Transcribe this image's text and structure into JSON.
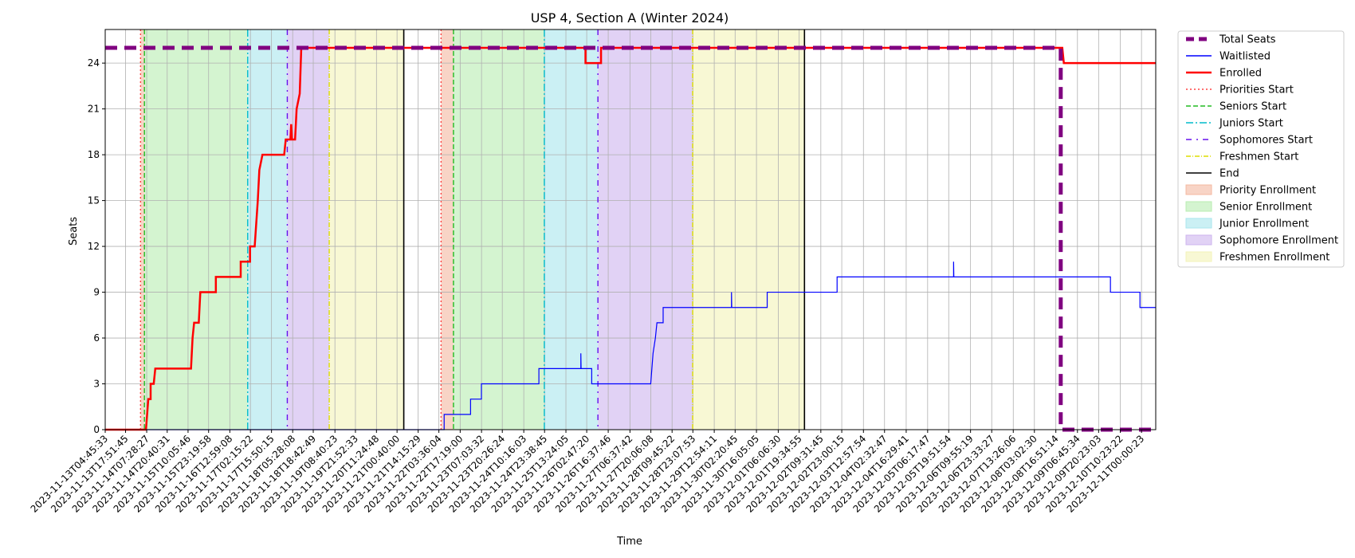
{
  "chart_data": {
    "type": "line",
    "title": "USP 4, Section A (Winter 2024)",
    "xlabel": "Time",
    "ylabel": "Seats",
    "xlim": [
      "2023-11-13T04:45:33",
      "2023-12-11T09:10:00"
    ],
    "ylim": [
      0,
      26.2
    ],
    "yticks": [
      0,
      3,
      6,
      9,
      12,
      15,
      18,
      21,
      24
    ],
    "xticks": [
      "2023-11-13T04:45:33",
      "2023-11-13T17:51:45",
      "2023-11-14T07:28:27",
      "2023-11-14T20:40:31",
      "2023-11-15T10:05:46",
      "2023-11-15T23:19:58",
      "2023-11-16T12:59:08",
      "2023-11-17T02:15:22",
      "2023-11-17T15:50:15",
      "2023-11-18T05:28:08",
      "2023-11-18T18:42:49",
      "2023-11-19T08:40:23",
      "2023-11-19T21:52:33",
      "2023-11-20T11:24:48",
      "2023-11-21T00:40:00",
      "2023-11-21T14:15:29",
      "2023-11-22T03:36:04",
      "2023-11-22T17:19:00",
      "2023-11-23T07:03:32",
      "2023-11-23T20:26:24",
      "2023-11-24T10:16:03",
      "2023-11-24T23:38:45",
      "2023-11-25T13:24:05",
      "2023-11-26T02:47:20",
      "2023-11-26T16:37:46",
      "2023-11-27T06:37:42",
      "2023-11-27T20:06:08",
      "2023-11-28T09:45:22",
      "2023-11-28T23:07:53",
      "2023-11-29T12:54:11",
      "2023-11-30T02:20:45",
      "2023-11-30T16:05:05",
      "2023-12-01T06:06:30",
      "2023-12-01T19:34:55",
      "2023-12-02T09:31:45",
      "2023-12-02T23:00:15",
      "2023-12-03T12:57:54",
      "2023-12-04T02:32:47",
      "2023-12-04T16:29:41",
      "2023-12-05T06:17:47",
      "2023-12-05T19:51:54",
      "2023-12-06T09:55:19",
      "2023-12-06T23:33:27",
      "2023-12-07T13:26:06",
      "2023-12-08T03:02:30",
      "2023-12-08T16:51:14",
      "2023-12-09T06:45:34",
      "2023-12-09T20:23:03",
      "2023-12-10T10:23:22",
      "2023-12-11T00:00:23"
    ],
    "grid": true,
    "legend": "outside right",
    "series": [
      {
        "name": "Total Seats",
        "color": "#800080",
        "style": "dashed-thick",
        "points": [
          [
            "2023-11-13T04:45:33",
            25
          ],
          [
            "2023-12-08T20:00:00",
            25
          ],
          [
            "2023-12-08T20:00:00",
            0
          ],
          [
            "2023-12-11T09:10:00",
            0
          ]
        ]
      },
      {
        "name": "Waitlisted",
        "color": "#0000ff",
        "style": "solid",
        "points": [
          [
            "2023-11-13T04:45:33",
            0
          ],
          [
            "2023-11-22T07:00:00",
            0
          ],
          [
            "2023-11-22T07:00:00",
            1
          ],
          [
            "2023-11-23T00:00:00",
            1
          ],
          [
            "2023-11-23T00:00:00",
            2
          ],
          [
            "2023-11-23T07:00:00",
            2
          ],
          [
            "2023-11-23T07:00:00",
            3
          ],
          [
            "2023-11-24T20:00:00",
            3
          ],
          [
            "2023-11-24T20:00:00",
            4
          ],
          [
            "2023-11-25T23:00:00",
            4
          ],
          [
            "2023-11-25T23:00:00",
            5
          ],
          [
            "2023-11-25T23:10:00",
            4
          ],
          [
            "2023-11-26T06:00:00",
            4
          ],
          [
            "2023-11-26T06:00:00",
            3
          ],
          [
            "2023-11-27T20:00:00",
            3
          ],
          [
            "2023-11-27T21:30:00",
            5
          ],
          [
            "2023-11-27T23:00:00",
            6
          ],
          [
            "2023-11-28T00:00:00",
            7
          ],
          [
            "2023-11-28T04:00:00",
            7
          ],
          [
            "2023-11-28T04:00:00",
            8
          ],
          [
            "2023-11-30T00:00:00",
            8
          ],
          [
            "2023-11-30T00:00:00",
            9
          ],
          [
            "2023-11-30T00:10:00",
            8
          ],
          [
            "2023-11-30T23:00:00",
            8
          ],
          [
            "2023-11-30T23:00:00",
            9
          ],
          [
            "2023-12-02T20:00:00",
            9
          ],
          [
            "2023-12-02T20:00:00",
            10
          ],
          [
            "2023-12-05T23:00:00",
            10
          ],
          [
            "2023-12-05T23:00:00",
            11
          ],
          [
            "2023-12-05T23:10:00",
            10
          ],
          [
            "2023-12-10T04:00:00",
            10
          ],
          [
            "2023-12-10T04:00:00",
            9
          ],
          [
            "2023-12-10T23:00:00",
            9
          ],
          [
            "2023-12-10T23:00:00",
            8
          ],
          [
            "2023-12-11T09:10:00",
            8
          ]
        ]
      },
      {
        "name": "Enrolled",
        "color": "#ff0000",
        "style": "solid-thick",
        "points": [
          [
            "2023-11-13T04:45:33",
            0
          ],
          [
            "2023-11-14T07:00:00",
            0
          ],
          [
            "2023-11-14T08:30:00",
            2
          ],
          [
            "2023-11-14T10:00:00",
            2
          ],
          [
            "2023-11-14T10:00:00",
            3
          ],
          [
            "2023-11-14T12:00:00",
            3
          ],
          [
            "2023-11-14T13:00:00",
            4
          ],
          [
            "2023-11-15T12:00:00",
            4
          ],
          [
            "2023-11-15T13:00:00",
            6
          ],
          [
            "2023-11-15T14:00:00",
            7
          ],
          [
            "2023-11-15T17:00:00",
            7
          ],
          [
            "2023-11-15T18:00:00",
            9
          ],
          [
            "2023-11-16T04:00:00",
            9
          ],
          [
            "2023-11-16T04:00:00",
            10
          ],
          [
            "2023-11-16T20:00:00",
            10
          ],
          [
            "2023-11-16T20:00:00",
            11
          ],
          [
            "2023-11-17T02:00:00",
            11
          ],
          [
            "2023-11-17T02:00:00",
            12
          ],
          [
            "2023-11-17T05:00:00",
            12
          ],
          [
            "2023-11-17T07:00:00",
            15
          ],
          [
            "2023-11-17T08:00:00",
            17
          ],
          [
            "2023-11-17T10:00:00",
            18
          ],
          [
            "2023-11-18T00:00:00",
            18
          ],
          [
            "2023-11-18T01:00:00",
            19
          ],
          [
            "2023-11-18T04:00:00",
            19
          ],
          [
            "2023-11-18T04:30:00",
            20
          ],
          [
            "2023-11-18T05:00:00",
            19
          ],
          [
            "2023-11-18T07:00:00",
            19
          ],
          [
            "2023-11-18T08:00:00",
            21
          ],
          [
            "2023-11-18T10:00:00",
            22
          ],
          [
            "2023-11-18T11:00:00",
            25
          ],
          [
            "2023-11-26T02:00:00",
            25
          ],
          [
            "2023-11-26T02:00:00",
            24
          ],
          [
            "2023-11-26T12:00:00",
            24
          ],
          [
            "2023-11-26T12:00:00",
            25
          ],
          [
            "2023-12-08T21:00:00",
            25
          ],
          [
            "2023-12-08T22:00:00",
            24
          ],
          [
            "2023-12-11T09:10:00",
            24
          ]
        ]
      }
    ],
    "vlines": [
      {
        "name": "Priorities Start",
        "color": "#ff4040",
        "style": "dotted",
        "x": [
          "2023-11-14T03:30:00",
          "2023-11-22T05:00:00"
        ]
      },
      {
        "name": "Seniors Start",
        "color": "#22bb22",
        "style": "dashed",
        "x": [
          "2023-11-14T06:00:00",
          "2023-11-22T13:00:00"
        ]
      },
      {
        "name": "Juniors Start",
        "color": "#00bbcc",
        "style": "dashdot",
        "x": [
          "2023-11-17T00:30:00",
          "2023-11-24T23:30:00"
        ]
      },
      {
        "name": "Sophomores Start",
        "color": "#6610ee",
        "style": "loose-dashdot",
        "x": [
          "2023-11-18T02:00:00",
          "2023-11-26T10:00:00"
        ]
      },
      {
        "name": "Freshmen Start",
        "color": "#dddd00",
        "style": "dashdot-thin",
        "x": [
          "2023-11-19T05:00:00",
          "2023-11-28T23:00:00"
        ]
      },
      {
        "name": "End",
        "color": "#000000",
        "style": "solid",
        "x": [
          "2023-11-21T05:00:00",
          "2023-12-01T23:00:00"
        ]
      }
    ],
    "spans": [
      {
        "name": "Priority Enrollment",
        "color": "#f4b8a0",
        "ranges": [
          [
            "2023-11-14T03:30:00",
            "2023-11-14T06:00:00"
          ],
          [
            "2023-11-22T05:00:00",
            "2023-11-22T13:00:00"
          ]
        ]
      },
      {
        "name": "Senior Enrollment",
        "color": "#b8ecb0",
        "ranges": [
          [
            "2023-11-14T06:00:00",
            "2023-11-17T00:30:00"
          ],
          [
            "2023-11-22T13:00:00",
            "2023-11-24T23:30:00"
          ]
        ]
      },
      {
        "name": "Junior Enrollment",
        "color": "#a8e6ec",
        "ranges": [
          [
            "2023-11-17T00:30:00",
            "2023-11-18T02:00:00"
          ],
          [
            "2023-11-24T23:30:00",
            "2023-11-26T10:00:00"
          ]
        ]
      },
      {
        "name": "Sophomore Enrollment",
        "color": "#cdb4ee",
        "ranges": [
          [
            "2023-11-18T02:00:00",
            "2023-11-19T05:00:00"
          ],
          [
            "2023-11-26T10:00:00",
            "2023-11-28T23:00:00"
          ]
        ]
      },
      {
        "name": "Freshmen Enrollment",
        "color": "#f3f3b8",
        "ranges": [
          [
            "2023-11-19T05:00:00",
            "2023-11-21T05:00:00"
          ],
          [
            "2023-11-28T23:00:00",
            "2023-12-01T23:00:00"
          ]
        ]
      }
    ]
  }
}
